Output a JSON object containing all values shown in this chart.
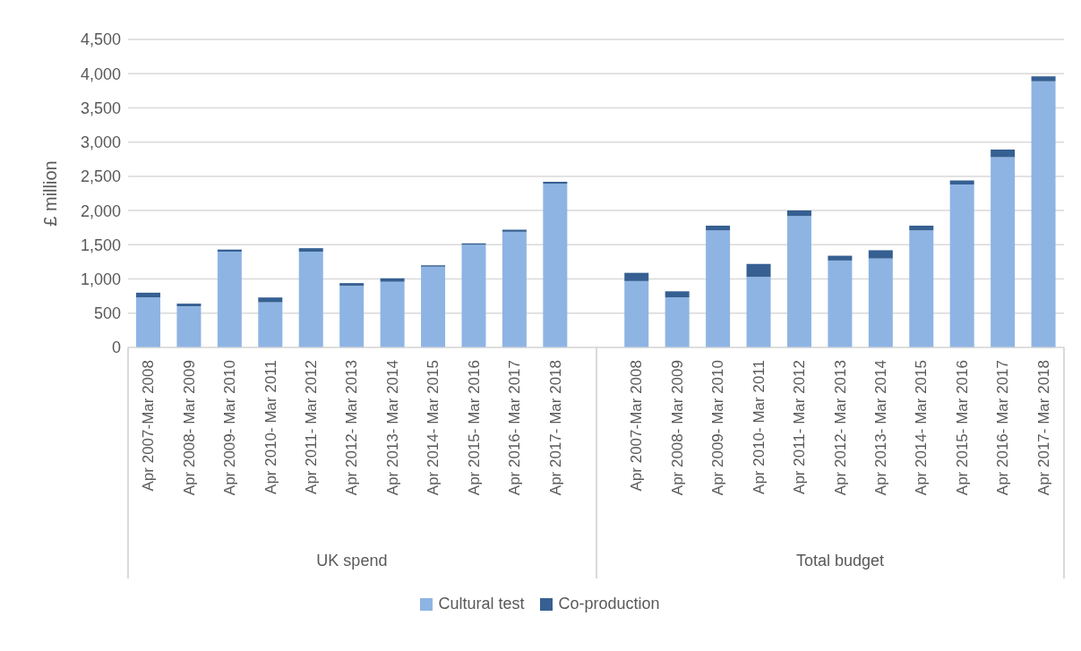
{
  "chart_data": {
    "type": "bar",
    "stacked": true,
    "ylabel": "£ million",
    "categories": [
      "Apr 2007-Mar 2008",
      "Apr 2008- Mar 2009",
      "Apr 2009- Mar 2010",
      "Apr 2010- Mar 2011",
      "Apr 2011- Mar 2012",
      "Apr 2012- Mar 2013",
      "Apr 2013- Mar 2014",
      "Apr 2014- Mar 2015",
      "Apr 2015- Mar 2016",
      "Apr 2016- Mar 2017",
      "Apr 2017- Mar 2018",
      null,
      "Apr 2007-Mar 2008",
      "Apr 2008- Mar 2009",
      "Apr 2009- Mar 2010",
      "Apr 2010- Mar 2011",
      "Apr 2011- Mar 2012",
      "Apr 2012- Mar 2013",
      "Apr 2013- Mar 2014",
      "Apr 2014- Mar 2015",
      "Apr 2015- Mar 2016",
      "Apr 2016- Mar 2017",
      "Apr 2017- Mar 2018"
    ],
    "series": [
      {
        "name": "Cultural test",
        "color": "#8eb4e3",
        "values": [
          730,
          600,
          1400,
          660,
          1400,
          900,
          960,
          1180,
          1500,
          1690,
          2390,
          null,
          970,
          730,
          1710,
          1030,
          1920,
          1270,
          1300,
          1710,
          2380,
          2780,
          3890
        ]
      },
      {
        "name": "Co-production",
        "color": "#366092",
        "values": [
          70,
          40,
          30,
          70,
          50,
          40,
          50,
          20,
          20,
          30,
          30,
          null,
          120,
          90,
          70,
          190,
          80,
          70,
          120,
          70,
          60,
          110,
          70
        ]
      }
    ],
    "ylim": [
      0,
      4500
    ],
    "yticks": [
      0,
      500,
      {
        "value": 1000,
        "label": "1,000"
      },
      {
        "value": 1500,
        "label": "1,500"
      },
      {
        "value": 2000,
        "label": "2,000"
      },
      {
        "value": 2500,
        "label": "2,500"
      },
      {
        "value": 3000,
        "label": "3,000"
      },
      {
        "value": 3500,
        "label": "3,500"
      },
      {
        "value": 4000,
        "label": "4,000"
      },
      {
        "value": 4500,
        "label": "4,500"
      }
    ],
    "grid": "y",
    "legend": "bottom",
    "annotations": [
      "UK spend",
      "Total budget"
    ]
  }
}
